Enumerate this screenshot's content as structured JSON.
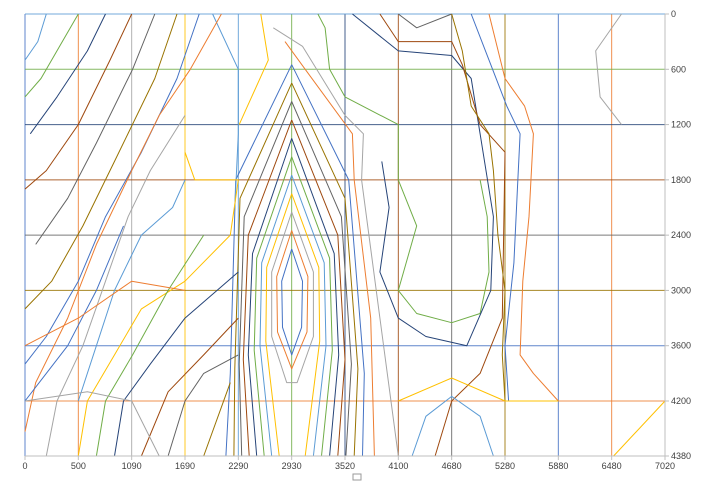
{
  "chart_data": {
    "type": "contour",
    "title": "",
    "xlabel": "",
    "ylabel": "",
    "x_ticks": [
      0,
      500,
      1090,
      1690,
      2290,
      2930,
      3520,
      4100,
      4680,
      5280,
      5880,
      6480,
      7020
    ],
    "y_ticks": [
      0,
      600,
      1200,
      1800,
      2400,
      3000,
      3600,
      4200,
      4380
    ],
    "xlim": [
      0,
      7020
    ],
    "ylim": [
      0,
      4380
    ],
    "y_axis_position": "right",
    "y_axis_inverted": true,
    "grid": true,
    "legend": "none",
    "colors": [
      "#4472C4",
      "#ED7D31",
      "#A5A5A5",
      "#FFC000",
      "#5B9BD5",
      "#70AD47",
      "#264478",
      "#9E480E",
      "#636363",
      "#997300"
    ],
    "series": [
      {
        "points": [
          [
            2930,
            2550
          ],
          [
            3050,
            2900
          ],
          [
            3040,
            3400
          ],
          [
            2930,
            3700
          ],
          [
            2820,
            3400
          ],
          [
            2810,
            2900
          ],
          [
            2930,
            2550
          ]
        ]
      },
      {
        "points": [
          [
            2930,
            2350
          ],
          [
            3110,
            2850
          ],
          [
            3100,
            3450
          ],
          [
            2930,
            3850
          ],
          [
            2760,
            3450
          ],
          [
            2750,
            2850
          ],
          [
            2930,
            2350
          ]
        ]
      },
      {
        "points": [
          [
            2930,
            2150
          ],
          [
            3170,
            2800
          ],
          [
            3170,
            3500
          ],
          [
            2990,
            4000
          ],
          [
            2870,
            4000
          ],
          [
            2690,
            3500
          ],
          [
            2690,
            2800
          ],
          [
            2930,
            2150
          ]
        ]
      },
      {
        "points": [
          [
            2930,
            1950
          ],
          [
            3230,
            2750
          ],
          [
            3240,
            3550
          ],
          [
            3080,
            4380
          ],
          [
            2780,
            4380
          ],
          [
            2620,
            3550
          ],
          [
            2630,
            2750
          ],
          [
            2930,
            1950
          ]
        ]
      },
      {
        "points": [
          [
            2930,
            1750
          ],
          [
            3290,
            2700
          ],
          [
            3310,
            3600
          ],
          [
            3170,
            4380
          ],
          [
            2690,
            4380
          ],
          [
            2550,
            3600
          ],
          [
            2570,
            2700
          ],
          [
            2930,
            1750
          ]
        ]
      },
      {
        "points": [
          [
            2930,
            1550
          ],
          [
            3350,
            2650
          ],
          [
            3380,
            3650
          ],
          [
            3260,
            4380
          ],
          [
            2600,
            4380
          ],
          [
            2480,
            3650
          ],
          [
            2510,
            2650
          ],
          [
            2930,
            1550
          ]
        ]
      },
      {
        "points": [
          [
            2930,
            1350
          ],
          [
            3400,
            2600
          ],
          [
            3450,
            3700
          ],
          [
            3350,
            4380
          ],
          [
            2510,
            4380
          ],
          [
            2410,
            3700
          ],
          [
            2460,
            2600
          ],
          [
            2930,
            1350
          ]
        ]
      },
      {
        "points": [
          [
            2930,
            1150
          ],
          [
            3440,
            2400
          ],
          [
            3520,
            3750
          ],
          [
            3440,
            4380
          ],
          [
            2420,
            4380
          ],
          [
            2350,
            3750
          ],
          [
            2410,
            2400
          ],
          [
            2930,
            1150
          ]
        ]
      },
      {
        "points": [
          [
            2930,
            950
          ],
          [
            3480,
            2200
          ],
          [
            3590,
            3800
          ],
          [
            3530,
            4380
          ],
          [
            2330,
            4380
          ],
          [
            2300,
            3800
          ],
          [
            2360,
            2200
          ],
          [
            2930,
            950
          ]
        ]
      },
      {
        "points": [
          [
            2930,
            750
          ],
          [
            3520,
            2000
          ],
          [
            3660,
            3850
          ],
          [
            3620,
            4380
          ],
          [
            2240,
            4380
          ],
          [
            2250,
            3850
          ],
          [
            2310,
            2000
          ],
          [
            2930,
            750
          ]
        ]
      },
      {
        "points": [
          [
            2930,
            550
          ],
          [
            3560,
            1800
          ],
          [
            3730,
            3900
          ],
          [
            3710,
            4380
          ],
          [
            2150,
            4380
          ],
          [
            2200,
            3900
          ],
          [
            2260,
            1800
          ],
          [
            2930,
            550
          ]
        ]
      },
      {
        "points": [
          [
            2850,
            300
          ],
          [
            3080,
            600
          ],
          [
            3600,
            1300
          ],
          [
            3620,
            1800
          ],
          [
            3800,
            3300
          ],
          [
            3840,
            4380
          ]
        ]
      },
      {
        "points": [
          [
            2710,
            150
          ],
          [
            3050,
            350
          ],
          [
            3520,
            1100
          ],
          [
            3720,
            1300
          ],
          [
            3700,
            1800
          ],
          [
            3900,
            3300
          ],
          [
            4100,
            4380
          ]
        ]
      },
      {
        "points": [
          [
            2560,
            0
          ],
          [
            2650,
            500
          ],
          [
            2400,
            1000
          ],
          [
            2300,
            1200
          ]
        ]
      },
      {
        "points": [
          [
            2000,
            0
          ],
          [
            2290,
            600
          ],
          [
            2290,
            1300
          ],
          [
            2250,
            2100
          ]
        ]
      },
      {
        "points": [
          [
            3220,
            0
          ],
          [
            3300,
            150
          ],
          [
            3350,
            600
          ],
          [
            3520,
            900
          ],
          [
            4100,
            1200
          ],
          [
            4100,
            1800
          ],
          [
            4300,
            2300
          ],
          [
            4100,
            3000
          ],
          [
            4300,
            3250
          ],
          [
            4680,
            3350
          ],
          [
            5000,
            3250
          ],
          [
            5100,
            2800
          ],
          [
            5080,
            2200
          ],
          [
            5000,
            1800
          ]
        ]
      },
      {
        "points": [
          [
            3600,
            0
          ],
          [
            4100,
            400
          ],
          [
            4680,
            450
          ],
          [
            4900,
            700
          ],
          [
            5000,
            1300
          ],
          [
            5150,
            2200
          ],
          [
            5120,
            3000
          ],
          [
            4850,
            3600
          ],
          [
            4400,
            3500
          ],
          [
            4100,
            3300
          ],
          [
            3900,
            2800
          ],
          [
            4000,
            2100
          ],
          [
            3920,
            1600
          ]
        ]
      },
      {
        "points": [
          [
            3900,
            0
          ],
          [
            4100,
            300
          ],
          [
            4680,
            300
          ],
          [
            4800,
            550
          ],
          [
            5000,
            1200
          ],
          [
            5280,
            1500
          ],
          [
            5250,
            3300
          ],
          [
            5000,
            3900
          ],
          [
            4680,
            4200
          ],
          [
            4500,
            4380
          ]
        ]
      },
      {
        "points": [
          [
            4100,
            0
          ],
          [
            4300,
            150
          ],
          [
            4680,
            0
          ]
        ]
      },
      {
        "points": [
          [
            4680,
            0
          ],
          [
            4800,
            400
          ],
          [
            4900,
            1000
          ],
          [
            5100,
            1300
          ],
          [
            5150,
            1700
          ],
          [
            5200,
            2400
          ],
          [
            5280,
            3000
          ],
          [
            5250,
            3700
          ],
          [
            5280,
            4200
          ]
        ]
      },
      {
        "points": [
          [
            4900,
            0
          ],
          [
            5100,
            500
          ],
          [
            5300,
            1000
          ],
          [
            5450,
            1300
          ],
          [
            5420,
            1900
          ],
          [
            5380,
            2700
          ],
          [
            5280,
            3600
          ],
          [
            5320,
            4200
          ]
        ]
      },
      {
        "points": [
          [
            5100,
            0
          ],
          [
            5280,
            700
          ],
          [
            5500,
            1000
          ],
          [
            5600,
            1300
          ],
          [
            5550,
            2200
          ],
          [
            5480,
            2900
          ],
          [
            5450,
            3700
          ],
          [
            5600,
            3900
          ],
          [
            5880,
            4200
          ]
        ]
      },
      {
        "points": [
          [
            6580,
            0
          ],
          [
            6300,
            400
          ],
          [
            6350,
            900
          ],
          [
            6580,
            1200
          ]
        ]
      },
      {
        "points": [
          [
            7020,
            4200
          ],
          [
            6500,
            4380
          ]
        ]
      },
      {
        "points": [
          [
            200,
            0
          ],
          [
            120,
            300
          ],
          [
            0,
            500
          ]
        ]
      },
      {
        "points": [
          [
            500,
            0
          ],
          [
            350,
            300
          ],
          [
            150,
            700
          ],
          [
            0,
            900
          ]
        ]
      },
      {
        "points": [
          [
            800,
            0
          ],
          [
            600,
            400
          ],
          [
            300,
            900
          ],
          [
            50,
            1300
          ]
        ]
      },
      {
        "points": [
          [
            1090,
            0
          ],
          [
            850,
            500
          ],
          [
            500,
            1200
          ],
          [
            200,
            1700
          ],
          [
            0,
            1900
          ]
        ]
      },
      {
        "points": [
          [
            1350,
            0
          ],
          [
            1100,
            600
          ],
          [
            700,
            1400
          ],
          [
            400,
            2000
          ],
          [
            100,
            2500
          ]
        ]
      },
      {
        "points": [
          [
            1600,
            0
          ],
          [
            1350,
            700
          ],
          [
            900,
            1600
          ],
          [
            550,
            2300
          ],
          [
            250,
            2900
          ],
          [
            0,
            3200
          ]
        ]
      },
      {
        "points": [
          [
            1850,
            0
          ],
          [
            1600,
            700
          ],
          [
            1200,
            1500
          ],
          [
            800,
            2200
          ],
          [
            500,
            2900
          ],
          [
            200,
            3500
          ],
          [
            0,
            3800
          ]
        ]
      },
      {
        "points": [
          [
            2100,
            0
          ],
          [
            1750,
            600
          ],
          [
            1400,
            1100
          ],
          [
            1090,
            1700
          ],
          [
            700,
            2500
          ],
          [
            400,
            3300
          ],
          [
            100,
            4000
          ],
          [
            0,
            4300
          ]
        ]
      },
      {
        "points": [
          [
            1690,
            1100
          ],
          [
            1300,
            1700
          ],
          [
            1050,
            2200
          ],
          [
            800,
            2900
          ],
          [
            550,
            3600
          ],
          [
            300,
            4200
          ],
          [
            200,
            4380
          ]
        ]
      },
      {
        "points": [
          [
            1690,
            1500
          ],
          [
            1800,
            1800
          ],
          [
            2290,
            1800
          ],
          [
            2200,
            2400
          ],
          [
            1690,
            2900
          ],
          [
            1200,
            3200
          ],
          [
            900,
            3700
          ],
          [
            600,
            4200
          ],
          [
            500,
            4380
          ]
        ]
      },
      {
        "points": [
          [
            1690,
            1800
          ],
          [
            1550,
            2100
          ],
          [
            1200,
            2400
          ],
          [
            900,
            3000
          ],
          [
            700,
            3600
          ],
          [
            500,
            4200
          ]
        ]
      },
      {
        "points": [
          [
            1900,
            2400
          ],
          [
            1500,
            3000
          ],
          [
            1100,
            3700
          ],
          [
            800,
            4200
          ],
          [
            700,
            4380
          ]
        ]
      },
      {
        "points": [
          [
            2290,
            2800
          ],
          [
            1690,
            3300
          ],
          [
            1300,
            3800
          ],
          [
            1000,
            4200
          ],
          [
            900,
            4380
          ]
        ]
      },
      {
        "points": [
          [
            2290,
            3300
          ],
          [
            1900,
            3700
          ],
          [
            1500,
            4100
          ],
          [
            1200,
            4380
          ]
        ]
      },
      {
        "points": [
          [
            2290,
            3700
          ],
          [
            1900,
            3900
          ],
          [
            1690,
            4200
          ],
          [
            1500,
            4380
          ]
        ]
      },
      {
        "points": [
          [
            2200,
            4000
          ],
          [
            1900,
            4380
          ]
        ]
      },
      {
        "points": [
          [
            1000,
            2300
          ],
          [
            700,
            3000
          ],
          [
            400,
            3600
          ],
          [
            0,
            4200
          ]
        ]
      },
      {
        "points": [
          [
            0,
            3600
          ],
          [
            500,
            3300
          ],
          [
            1090,
            2900
          ],
          [
            1690,
            3000
          ]
        ]
      },
      {
        "points": [
          [
            0,
            4200
          ],
          [
            600,
            4100
          ],
          [
            1090,
            4200
          ],
          [
            1400,
            4380
          ]
        ]
      },
      {
        "points": [
          [
            4100,
            4200
          ],
          [
            4680,
            3950
          ],
          [
            5280,
            4200
          ],
          [
            5880,
            4200
          ]
        ]
      },
      {
        "points": [
          [
            4250,
            4380
          ],
          [
            4400,
            4250
          ],
          [
            4680,
            4150
          ],
          [
            5000,
            4250
          ],
          [
            5150,
            4380
          ]
        ]
      }
    ]
  }
}
